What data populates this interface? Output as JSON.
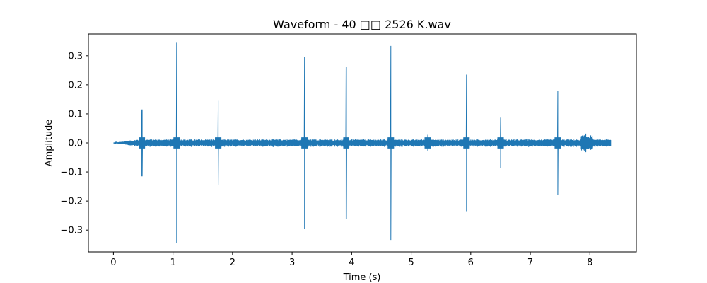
{
  "chart_data": {
    "type": "line",
    "title": "Waveform - 40 □□ 2526 K.wav",
    "xlabel": "Time (s)",
    "ylabel": "Amplitude",
    "xlim": [
      -0.42,
      8.78
    ],
    "ylim": [
      -0.375,
      0.375
    ],
    "xticks": [
      0,
      1,
      2,
      3,
      4,
      5,
      6,
      7,
      8
    ],
    "xtick_labels": [
      "0",
      "1",
      "2",
      "3",
      "4",
      "5",
      "6",
      "7",
      "8"
    ],
    "yticks": [
      -0.3,
      -0.2,
      -0.1,
      0.0,
      0.1,
      0.2,
      0.3
    ],
    "ytick_labels": [
      "−0.3",
      "−0.2",
      "−0.1",
      "0.0",
      "0.1",
      "0.2",
      "0.3"
    ],
    "grid": false,
    "series_color": "#1f77b4",
    "duration_s": 8.35,
    "noise_amplitude": 0.012,
    "spikes": [
      {
        "t": 0.48,
        "max": 0.115,
        "min": -0.115
      },
      {
        "t": 1.06,
        "max": 0.345,
        "min": -0.345
      },
      {
        "t": 1.76,
        "max": 0.145,
        "min": -0.145
      },
      {
        "t": 3.21,
        "max": 0.297,
        "min": -0.297
      },
      {
        "t": 3.91,
        "max": 0.262,
        "min": -0.262
      },
      {
        "t": 4.66,
        "max": 0.334,
        "min": -0.334
      },
      {
        "t": 5.28,
        "max": 0.028,
        "min": -0.028
      },
      {
        "t": 5.93,
        "max": 0.235,
        "min": -0.235
      },
      {
        "t": 6.5,
        "max": 0.087,
        "min": -0.087
      },
      {
        "t": 7.46,
        "max": 0.178,
        "min": -0.178
      },
      {
        "t": 7.93,
        "max": 0.032,
        "min": -0.032
      }
    ]
  }
}
